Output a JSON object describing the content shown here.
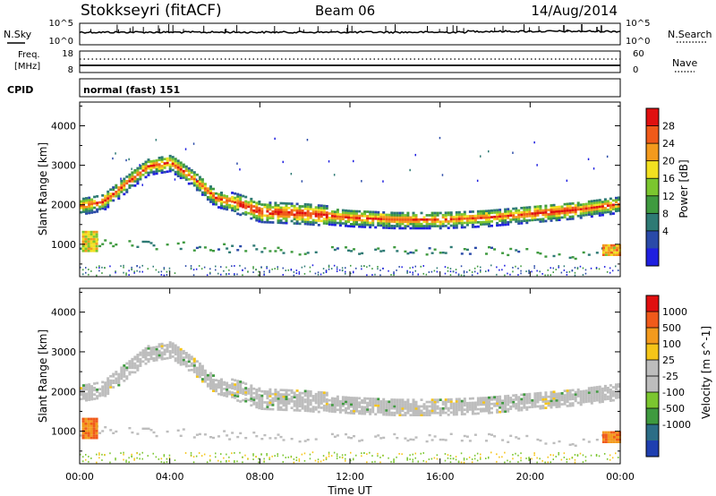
{
  "header": {
    "station": "Stokkseyri (fitACF)",
    "beam": "Beam 06",
    "date": "14/Aug/2014"
  },
  "side_labels": {
    "nsky": "N.Sky",
    "freq_line1": "Freq.",
    "freq_line2": "[MHz]",
    "cpid": "CPID",
    "nsearch": "N.Search",
    "nave": "Nave"
  },
  "cpid_text": "normal (fast) 151",
  "noise_axis": {
    "left_top": "10^5",
    "left_bottom": "10^0",
    "right_top": "10^5",
    "right_bottom": "10^0"
  },
  "freq_axis": {
    "left_top": "18",
    "left_bottom": "8",
    "right_top": "60",
    "right_bottom": "0"
  },
  "x_axis": {
    "label": "Time UT",
    "ticks": [
      "00:00",
      "04:00",
      "08:00",
      "12:00",
      "16:00",
      "20:00",
      "00:00"
    ]
  },
  "colors": {
    "power_scale": [
      "#1f1fe0",
      "#2a4aa8",
      "#2e7a74",
      "#3f9a3f",
      "#7bc62f",
      "#f2e020",
      "#f39a1d",
      "#f05a1a",
      "#e01010"
    ],
    "velocity_scale": [
      "#1f3fb0",
      "#2c6d86",
      "#3f9a3f",
      "#7bc62f",
      "#bdbdbd",
      "#bdbdbd",
      "#f5c518",
      "#f39a1d",
      "#f05a1a",
      "#e01010"
    ]
  },
  "chart_data": [
    {
      "type": "heatmap",
      "title": "",
      "xlabel": "Time UT",
      "ylabel": "Slant Range [km]",
      "xlim": [
        0,
        24
      ],
      "ylim": [
        180,
        4600
      ],
      "yticks": [
        "1000",
        "2000",
        "3000",
        "4000"
      ],
      "colorbar": {
        "label": "Power [dB]",
        "ticks": [
          "28",
          "24",
          "20",
          "16",
          "12",
          "8",
          "4"
        ],
        "range": [
          0,
          32
        ]
      },
      "bands": [
        {
          "name": "main",
          "points": [
            [
              0,
              1950
            ],
            [
              1,
              2050
            ],
            [
              2,
              2500
            ],
            [
              3,
              2950
            ],
            [
              4,
              3050
            ],
            [
              5,
              2650
            ],
            [
              6,
              2150
            ],
            [
              7,
              2000
            ],
            [
              8,
              1800
            ],
            [
              10,
              1750
            ],
            [
              12,
              1650
            ],
            [
              14,
              1600
            ],
            [
              16,
              1600
            ],
            [
              18,
              1650
            ],
            [
              20,
              1750
            ],
            [
              22,
              1850
            ],
            [
              24,
              2000
            ]
          ],
          "power": 17
        },
        {
          "name": "near",
          "points": [
            [
              0,
              950
            ],
            [
              0.5,
              1000
            ],
            [
              5.5,
              900
            ],
            [
              9,
              800
            ],
            [
              13,
              800
            ],
            [
              18,
              800
            ],
            [
              22,
              700
            ],
            [
              24,
              850
            ]
          ],
          "power": 10
        }
      ]
    },
    {
      "type": "heatmap",
      "title": "",
      "xlabel": "Time UT",
      "ylabel": "Slant Range [km]",
      "xlim": [
        0,
        24
      ],
      "ylim": [
        180,
        4600
      ],
      "yticks": [
        "1000",
        "2000",
        "3000",
        "4000"
      ],
      "colorbar": {
        "label": "Velocity [m s^-1]",
        "ticks": [
          "1000",
          "500",
          "100",
          "25",
          "-25",
          "-100",
          "-500",
          "-1000"
        ],
        "range": [
          -1200,
          1200
        ]
      },
      "bands": [
        {
          "name": "main",
          "points": [
            [
              0,
              1950
            ],
            [
              1,
              2050
            ],
            [
              2,
              2500
            ],
            [
              3,
              2950
            ],
            [
              4,
              3050
            ],
            [
              5,
              2650
            ],
            [
              6,
              2150
            ],
            [
              7,
              2000
            ],
            [
              8,
              1800
            ],
            [
              10,
              1750
            ],
            [
              12,
              1650
            ],
            [
              14,
              1600
            ],
            [
              16,
              1600
            ],
            [
              18,
              1650
            ],
            [
              20,
              1750
            ],
            [
              22,
              1850
            ],
            [
              24,
              2000
            ]
          ],
          "velocity": 0
        }
      ]
    }
  ]
}
